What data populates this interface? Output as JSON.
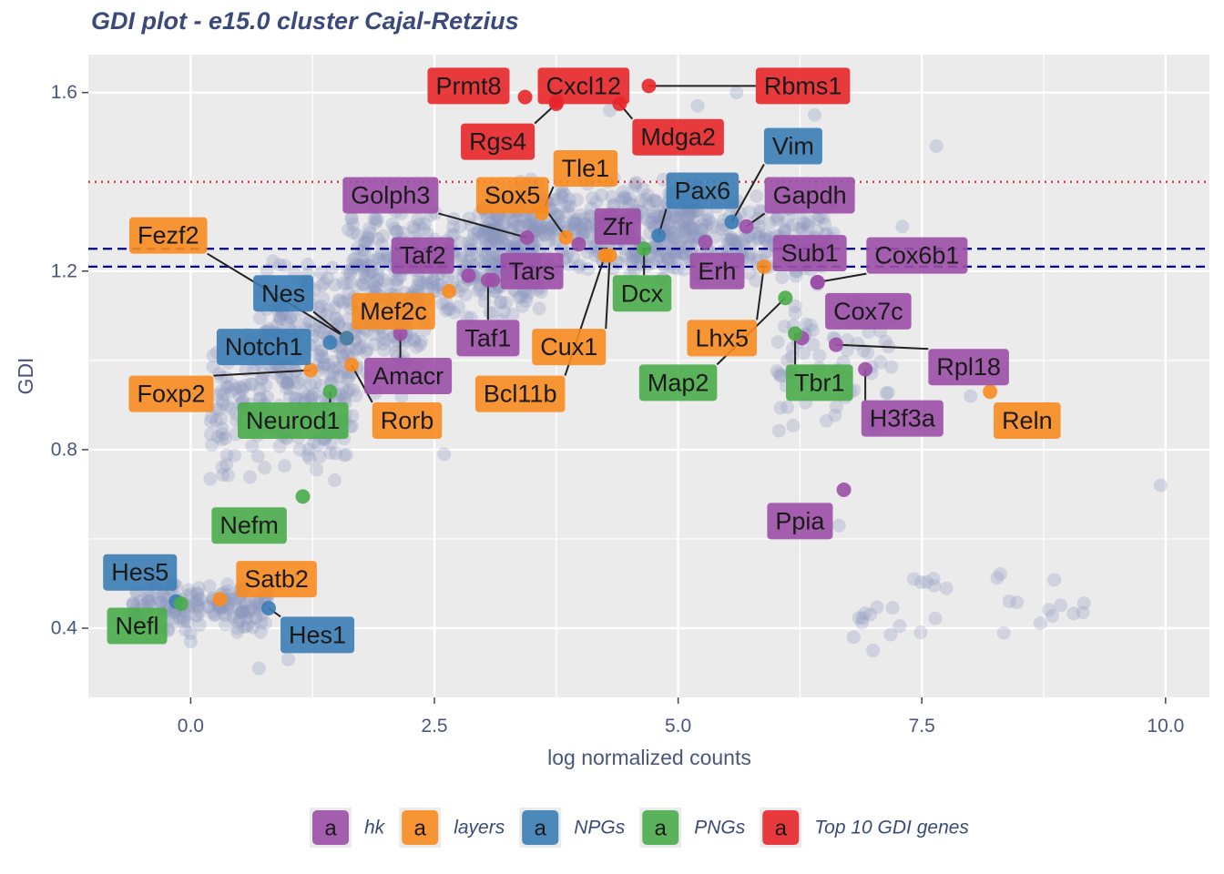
{
  "chart_data": {
    "type": "scatter",
    "title": "GDI plot - e15.0 cluster Cajal-Retzius",
    "xlabel": "log normalized counts",
    "ylabel": "GDI",
    "xlim": [
      -1.05,
      10.45
    ],
    "ylim": [
      0.245,
      1.685
    ],
    "x_ticks": [
      0.0,
      2.5,
      5.0,
      7.5,
      10.0
    ],
    "x_tick_labels": [
      "0.0",
      "2.5",
      "5.0",
      "7.5",
      "10.0"
    ],
    "y_ticks": [
      0.4,
      0.8,
      1.2,
      1.6
    ],
    "y_tick_labels": [
      "0.4",
      "0.8",
      "1.2",
      "1.6"
    ],
    "grid": true,
    "background": "#ebebeb",
    "reference_lines": [
      {
        "y": 1.4,
        "style": "dotted",
        "color": "#e8262a"
      },
      {
        "y": 1.25,
        "style": "dashed",
        "color": "#00008b"
      },
      {
        "y": 1.21,
        "style": "dashed",
        "color": "#00008b"
      }
    ],
    "background_points": {
      "color": "#8b96c0",
      "note": "thousands of gray-blue background genes",
      "bands": [
        {
          "x": [
            -0.6,
            0.8
          ],
          "y": [
            0.38,
            0.52
          ],
          "n": 180
        },
        {
          "x": [
            0.2,
            1.7
          ],
          "y": [
            0.72,
            1.1
          ],
          "n": 220
        },
        {
          "x": [
            0.7,
            2.4
          ],
          "y": [
            0.9,
            1.25
          ],
          "n": 260
        },
        {
          "x": [
            1.6,
            3.6
          ],
          "y": [
            1.08,
            1.35
          ],
          "n": 360
        },
        {
          "x": [
            3.0,
            5.2
          ],
          "y": [
            1.18,
            1.42
          ],
          "n": 420
        },
        {
          "x": [
            4.8,
            6.6
          ],
          "y": [
            1.16,
            1.38
          ],
          "n": 240
        },
        {
          "x": [
            6.0,
            7.2
          ],
          "y": [
            0.8,
            1.2
          ],
          "n": 70
        },
        {
          "x": [
            6.8,
            9.2
          ],
          "y": [
            0.35,
            0.55
          ],
          "n": 30
        }
      ],
      "points": [
        [
          2.6,
          0.79
        ],
        [
          6.65,
          0.63
        ],
        [
          9.95,
          0.72
        ],
        [
          4.3,
          1.56
        ],
        [
          5.2,
          1.57
        ],
        [
          5.6,
          1.6
        ],
        [
          6.4,
          1.55
        ],
        [
          8.0,
          0.92
        ],
        [
          7.3,
          1.3
        ],
        [
          7.65,
          1.48
        ],
        [
          0.0,
          0.37
        ],
        [
          0.7,
          0.31
        ],
        [
          1.0,
          0.33
        ],
        [
          7.0,
          0.35
        ],
        [
          6.8,
          0.38
        ]
      ]
    },
    "series": [
      {
        "name": "hk",
        "color": "#9c4fa7"
      },
      {
        "name": "layers",
        "color": "#f88b1f"
      },
      {
        "name": "NPGs",
        "color": "#3b7db5"
      },
      {
        "name": "PNGs",
        "color": "#4aad4a"
      },
      {
        "name": "Top 10 GDI genes",
        "color": "#e8262a"
      }
    ],
    "genes": [
      {
        "gene": "Prmt8",
        "x": 3.43,
        "y": 1.59,
        "group": "Top 10 GDI genes",
        "label_x": 2.85,
        "label_y": 1.615,
        "leader": false
      },
      {
        "gene": "Cxcl12",
        "x": 3.75,
        "y": 1.58,
        "group": "Top 10 GDI genes",
        "label_x": 4.03,
        "label_y": 1.615,
        "leader": false
      },
      {
        "gene": "Rbms1",
        "x": 4.7,
        "y": 1.615,
        "group": "Top 10 GDI genes",
        "label_x": 6.28,
        "label_y": 1.615,
        "leader": true
      },
      {
        "gene": "Rgs4",
        "x": 3.75,
        "y": 1.575,
        "group": "Top 10 GDI genes",
        "label_x": 3.15,
        "label_y": 1.49,
        "leader": true
      },
      {
        "gene": "Mdga2",
        "x": 4.4,
        "y": 1.575,
        "group": "Top 10 GDI genes",
        "label_x": 5.0,
        "label_y": 1.5,
        "leader": true
      },
      {
        "gene": "Vim",
        "x": 5.55,
        "y": 1.31,
        "group": "NPGs",
        "label_x": 6.18,
        "label_y": 1.48,
        "leader": true
      },
      {
        "gene": "Tle1",
        "x": 3.6,
        "y": 1.33,
        "group": "layers",
        "label_x": 4.05,
        "label_y": 1.43,
        "leader": true
      },
      {
        "gene": "Pax6",
        "x": 4.8,
        "y": 1.28,
        "group": "NPGs",
        "label_x": 5.25,
        "label_y": 1.38,
        "leader": true
      },
      {
        "gene": "Gapdh",
        "x": 5.7,
        "y": 1.3,
        "group": "hk",
        "label_x": 6.35,
        "label_y": 1.37,
        "leader": true
      },
      {
        "gene": "Golph3",
        "x": 3.45,
        "y": 1.275,
        "group": "hk",
        "label_x": 2.05,
        "label_y": 1.37,
        "leader": true
      },
      {
        "gene": "Sox5",
        "x": 3.85,
        "y": 1.275,
        "group": "layers",
        "label_x": 3.3,
        "label_y": 1.37,
        "leader": true
      },
      {
        "gene": "Zfr",
        "x": 3.98,
        "y": 1.26,
        "group": "hk",
        "label_x": 4.38,
        "label_y": 1.3,
        "leader": false
      },
      {
        "gene": "Fezf2",
        "x": 1.6,
        "y": 1.05,
        "group": "layers",
        "label_x": -0.23,
        "label_y": 1.28,
        "leader": true
      },
      {
        "gene": "Taf2",
        "x": 2.85,
        "y": 1.19,
        "group": "hk",
        "label_x": 2.38,
        "label_y": 1.235,
        "leader": false
      },
      {
        "gene": "Tars",
        "x": 3.1,
        "y": 1.18,
        "group": "hk",
        "label_x": 3.5,
        "label_y": 1.2,
        "leader": false
      },
      {
        "gene": "Dcx",
        "x": 4.65,
        "y": 1.25,
        "group": "PNGs",
        "label_x": 4.63,
        "label_y": 1.15,
        "leader": true
      },
      {
        "gene": "Sub1",
        "x": 6.43,
        "y": 1.175,
        "group": "hk",
        "label_x": 6.35,
        "label_y": 1.24,
        "leader": false
      },
      {
        "gene": "Cox6b1",
        "x": 6.43,
        "y": 1.175,
        "group": "hk",
        "label_x": 7.45,
        "label_y": 1.235,
        "leader": true
      },
      {
        "gene": "Erh",
        "x": 5.28,
        "y": 1.265,
        "group": "hk",
        "label_x": 5.4,
        "label_y": 1.2,
        "leader": false
      },
      {
        "gene": "Nes",
        "x": 1.6,
        "y": 1.05,
        "group": "NPGs",
        "label_x": 0.95,
        "label_y": 1.15,
        "leader": true
      },
      {
        "gene": "Mef2c",
        "x": 2.65,
        "y": 1.155,
        "group": "layers",
        "label_x": 2.08,
        "label_y": 1.11,
        "leader": false
      },
      {
        "gene": "Taf1",
        "x": 3.05,
        "y": 1.18,
        "group": "hk",
        "label_x": 3.05,
        "label_y": 1.05,
        "leader": true
      },
      {
        "gene": "Lhx5",
        "x": 5.88,
        "y": 1.21,
        "group": "layers",
        "label_x": 5.45,
        "label_y": 1.05,
        "leader": true
      },
      {
        "gene": "Cox7c",
        "x": 6.27,
        "y": 1.05,
        "group": "hk",
        "label_x": 6.95,
        "label_y": 1.11,
        "leader": false
      },
      {
        "gene": "Notch1",
        "x": 1.43,
        "y": 1.04,
        "group": "NPGs",
        "label_x": 0.75,
        "label_y": 1.03,
        "leader": false
      },
      {
        "gene": "Cux1",
        "x": 4.3,
        "y": 1.235,
        "group": "layers",
        "label_x": 3.88,
        "label_y": 1.03,
        "leader": true
      },
      {
        "gene": "Map2",
        "x": 6.1,
        "y": 1.14,
        "group": "PNGs",
        "label_x": 5.0,
        "label_y": 0.95,
        "leader": true
      },
      {
        "gene": "Tbr1",
        "x": 6.2,
        "y": 1.06,
        "group": "PNGs",
        "label_x": 6.45,
        "label_y": 0.95,
        "leader": true
      },
      {
        "gene": "Rpl18",
        "x": 6.62,
        "y": 1.035,
        "group": "hk",
        "label_x": 7.98,
        "label_y": 0.985,
        "leader": true
      },
      {
        "gene": "Amacr",
        "x": 2.15,
        "y": 1.06,
        "group": "hk",
        "label_x": 2.23,
        "label_y": 0.965,
        "leader": true
      },
      {
        "gene": "Foxp2",
        "x": 1.23,
        "y": 0.978,
        "group": "layers",
        "label_x": -0.2,
        "label_y": 0.925,
        "leader": true
      },
      {
        "gene": "Bcl11b",
        "x": 4.25,
        "y": 1.235,
        "group": "layers",
        "label_x": 3.38,
        "label_y": 0.925,
        "leader": true
      },
      {
        "gene": "H3f3a",
        "x": 6.92,
        "y": 0.98,
        "group": "hk",
        "label_x": 7.3,
        "label_y": 0.87,
        "leader": true
      },
      {
        "gene": "Reln",
        "x": 8.2,
        "y": 0.93,
        "group": "layers",
        "label_x": 8.58,
        "label_y": 0.865,
        "leader": false
      },
      {
        "gene": "Neurod1",
        "x": 1.43,
        "y": 0.93,
        "group": "PNGs",
        "label_x": 1.05,
        "label_y": 0.865,
        "leader": true
      },
      {
        "gene": "Rorb",
        "x": 1.65,
        "y": 0.99,
        "group": "layers",
        "label_x": 2.22,
        "label_y": 0.865,
        "leader": true
      },
      {
        "gene": "Ppia",
        "x": 6.7,
        "y": 0.71,
        "group": "hk",
        "label_x": 6.25,
        "label_y": 0.64,
        "leader": false
      },
      {
        "gene": "Nefm",
        "x": 1.15,
        "y": 0.695,
        "group": "PNGs",
        "label_x": 0.6,
        "label_y": 0.63,
        "leader": false
      },
      {
        "gene": "Hes5",
        "x": -0.15,
        "y": 0.46,
        "group": "NPGs",
        "label_x": -0.52,
        "label_y": 0.525,
        "leader": false
      },
      {
        "gene": "Satb2",
        "x": 0.3,
        "y": 0.465,
        "group": "layers",
        "label_x": 0.88,
        "label_y": 0.51,
        "leader": false
      },
      {
        "gene": "Nefl",
        "x": -0.1,
        "y": 0.455,
        "group": "PNGs",
        "label_x": -0.55,
        "label_y": 0.405,
        "leader": false
      },
      {
        "gene": "Hes1",
        "x": 0.8,
        "y": 0.445,
        "group": "NPGs",
        "label_x": 1.3,
        "label_y": 0.385,
        "leader": true
      }
    ],
    "legend": {
      "position": "bottom",
      "glyph": "a",
      "entries": [
        "hk",
        "layers",
        "NPGs",
        "PNGs",
        "Top 10 GDI genes"
      ]
    }
  }
}
